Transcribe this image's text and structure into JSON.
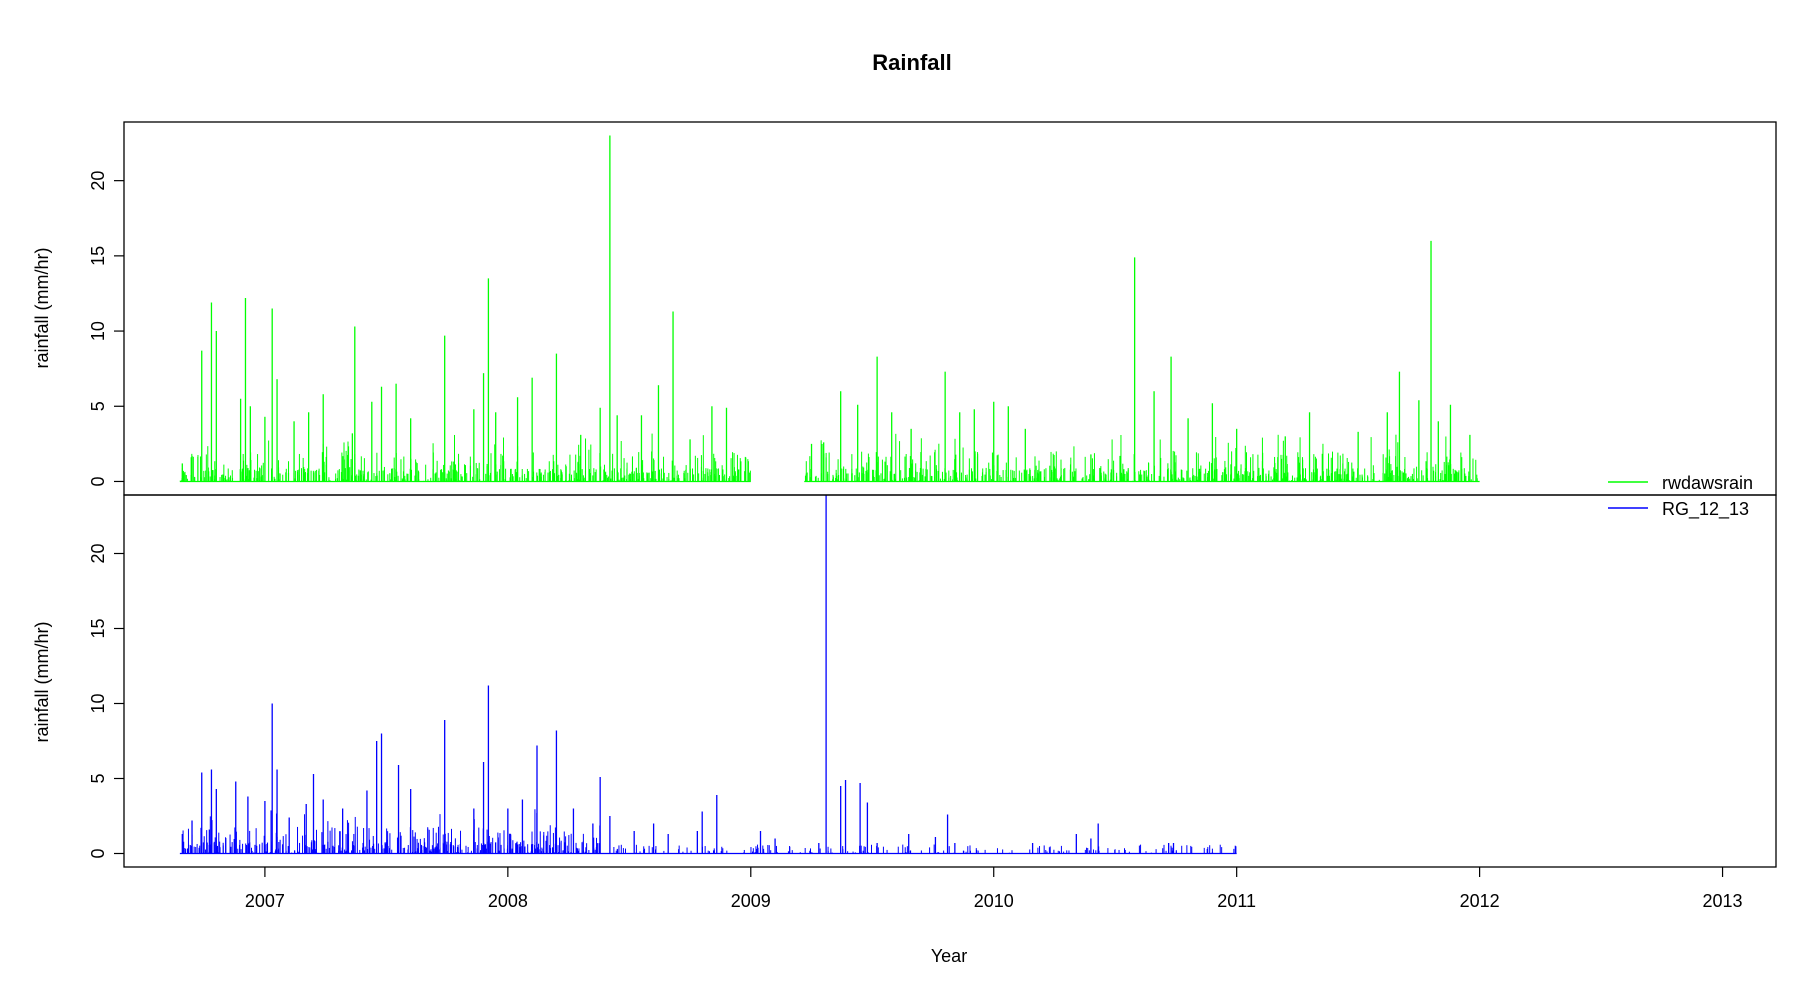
{
  "chart_data": {
    "type": "line",
    "title": "Rainfall",
    "xlabel": "Year",
    "x_ticks": [
      "2007",
      "2008",
      "2009",
      "2010",
      "2011",
      "2012",
      "2013"
    ],
    "xlim": [
      2006.42,
      2013.22
    ],
    "legend_position": "right, between panels",
    "grid": false,
    "panels": [
      {
        "ylabel": "rainfall (mm/hr)",
        "ylim": [
          -0.9,
          23.9
        ],
        "y_ticks": [
          0,
          5,
          10,
          15,
          20
        ],
        "series": [
          {
            "name": "rwdawsrain",
            "color": "#00ff00",
            "segments": [
              [
                2006.65,
                2009.0
              ],
              [
                2009.22,
                2012.0
              ]
            ],
            "peaks": [
              {
                "x": 2006.66,
                "y": 1.2
              },
              {
                "x": 2006.7,
                "y": 1.7
              },
              {
                "x": 2006.74,
                "y": 8.7
              },
              {
                "x": 2006.78,
                "y": 11.9
              },
              {
                "x": 2006.8,
                "y": 10.0
              },
              {
                "x": 2006.9,
                "y": 5.5
              },
              {
                "x": 2006.92,
                "y": 12.2
              },
              {
                "x": 2006.94,
                "y": 5.0
              },
              {
                "x": 2007.0,
                "y": 4.3
              },
              {
                "x": 2007.03,
                "y": 11.5
              },
              {
                "x": 2007.05,
                "y": 6.8
              },
              {
                "x": 2007.12,
                "y": 4.0
              },
              {
                "x": 2007.18,
                "y": 4.6
              },
              {
                "x": 2007.24,
                "y": 5.8
              },
              {
                "x": 2007.36,
                "y": 3.2
              },
              {
                "x": 2007.37,
                "y": 10.3
              },
              {
                "x": 2007.44,
                "y": 5.3
              },
              {
                "x": 2007.48,
                "y": 6.3
              },
              {
                "x": 2007.54,
                "y": 6.5
              },
              {
                "x": 2007.6,
                "y": 4.2
              },
              {
                "x": 2007.74,
                "y": 9.7
              },
              {
                "x": 2007.86,
                "y": 4.8
              },
              {
                "x": 2007.9,
                "y": 7.2
              },
              {
                "x": 2007.92,
                "y": 13.5
              },
              {
                "x": 2007.95,
                "y": 4.6
              },
              {
                "x": 2008.04,
                "y": 5.6
              },
              {
                "x": 2008.1,
                "y": 6.9
              },
              {
                "x": 2008.2,
                "y": 8.5
              },
              {
                "x": 2008.3,
                "y": 3.1
              },
              {
                "x": 2008.38,
                "y": 4.9
              },
              {
                "x": 2008.42,
                "y": 23.0
              },
              {
                "x": 2008.45,
                "y": 4.4
              },
              {
                "x": 2008.55,
                "y": 4.4
              },
              {
                "x": 2008.62,
                "y": 6.4
              },
              {
                "x": 2008.68,
                "y": 11.3
              },
              {
                "x": 2008.75,
                "y": 2.8
              },
              {
                "x": 2008.84,
                "y": 5.0
              },
              {
                "x": 2008.9,
                "y": 4.9
              },
              {
                "x": 2008.95,
                "y": 0.8
              },
              {
                "x": 2009.25,
                "y": 2.5
              },
              {
                "x": 2009.3,
                "y": 2.6
              },
              {
                "x": 2009.37,
                "y": 6.0
              },
              {
                "x": 2009.44,
                "y": 5.1
              },
              {
                "x": 2009.52,
                "y": 8.3
              },
              {
                "x": 2009.58,
                "y": 4.6
              },
              {
                "x": 2009.66,
                "y": 3.5
              },
              {
                "x": 2009.8,
                "y": 7.3
              },
              {
                "x": 2009.86,
                "y": 4.6
              },
              {
                "x": 2009.92,
                "y": 4.8
              },
              {
                "x": 2010.0,
                "y": 5.3
              },
              {
                "x": 2010.06,
                "y": 5.0
              },
              {
                "x": 2010.13,
                "y": 3.5
              },
              {
                "x": 2010.25,
                "y": 1.0
              },
              {
                "x": 2010.4,
                "y": 1.8
              },
              {
                "x": 2010.52,
                "y": 1.7
              },
              {
                "x": 2010.58,
                "y": 14.9
              },
              {
                "x": 2010.66,
                "y": 6.0
              },
              {
                "x": 2010.73,
                "y": 8.3
              },
              {
                "x": 2010.8,
                "y": 4.2
              },
              {
                "x": 2010.9,
                "y": 5.2
              },
              {
                "x": 2011.0,
                "y": 3.5
              },
              {
                "x": 2011.2,
                "y": 3.0
              },
              {
                "x": 2011.3,
                "y": 4.6
              },
              {
                "x": 2011.5,
                "y": 3.3
              },
              {
                "x": 2011.62,
                "y": 4.6
              },
              {
                "x": 2011.67,
                "y": 7.3
              },
              {
                "x": 2011.75,
                "y": 5.4
              },
              {
                "x": 2011.8,
                "y": 16.0
              },
              {
                "x": 2011.83,
                "y": 4.0
              },
              {
                "x": 2011.88,
                "y": 5.1
              },
              {
                "x": 2011.96,
                "y": 3.1
              }
            ]
          }
        ]
      },
      {
        "ylabel": "rainfall (mm/hr)",
        "ylim": [
          -0.9,
          23.9
        ],
        "y_ticks": [
          0,
          5,
          10,
          15,
          20
        ],
        "series": [
          {
            "name": "RG_12_13",
            "color": "#0000ff",
            "segments": [
              [
                2006.65,
                2011.0
              ]
            ],
            "peaks": [
              {
                "x": 2006.66,
                "y": 1.3
              },
              {
                "x": 2006.7,
                "y": 2.2
              },
              {
                "x": 2006.74,
                "y": 5.4
              },
              {
                "x": 2006.78,
                "y": 5.6
              },
              {
                "x": 2006.8,
                "y": 4.3
              },
              {
                "x": 2006.88,
                "y": 4.8
              },
              {
                "x": 2006.93,
                "y": 3.8
              },
              {
                "x": 2007.0,
                "y": 3.5
              },
              {
                "x": 2007.03,
                "y": 10.0
              },
              {
                "x": 2007.05,
                "y": 5.6
              },
              {
                "x": 2007.1,
                "y": 2.4
              },
              {
                "x": 2007.17,
                "y": 3.3
              },
              {
                "x": 2007.2,
                "y": 5.3
              },
              {
                "x": 2007.24,
                "y": 3.6
              },
              {
                "x": 2007.32,
                "y": 3.0
              },
              {
                "x": 2007.42,
                "y": 4.2
              },
              {
                "x": 2007.46,
                "y": 7.5
              },
              {
                "x": 2007.48,
                "y": 8.0
              },
              {
                "x": 2007.55,
                "y": 5.9
              },
              {
                "x": 2007.6,
                "y": 4.3
              },
              {
                "x": 2007.74,
                "y": 8.9
              },
              {
                "x": 2007.86,
                "y": 3.0
              },
              {
                "x": 2007.9,
                "y": 6.1
              },
              {
                "x": 2007.92,
                "y": 11.2
              },
              {
                "x": 2008.0,
                "y": 3.0
              },
              {
                "x": 2008.06,
                "y": 3.6
              },
              {
                "x": 2008.12,
                "y": 7.2
              },
              {
                "x": 2008.2,
                "y": 8.2
              },
              {
                "x": 2008.27,
                "y": 3.0
              },
              {
                "x": 2008.35,
                "y": 2.0
              },
              {
                "x": 2008.38,
                "y": 5.1
              },
              {
                "x": 2008.42,
                "y": 2.5
              },
              {
                "x": 2008.52,
                "y": 1.5
              },
              {
                "x": 2008.6,
                "y": 2.0
              },
              {
                "x": 2008.66,
                "y": 1.3
              },
              {
                "x": 2008.78,
                "y": 1.5
              },
              {
                "x": 2008.8,
                "y": 2.8
              },
              {
                "x": 2008.86,
                "y": 3.9
              },
              {
                "x": 2009.04,
                "y": 1.5
              },
              {
                "x": 2009.1,
                "y": 1.0
              },
              {
                "x": 2009.28,
                "y": 0.7
              },
              {
                "x": 2009.31,
                "y": 23.9
              },
              {
                "x": 2009.37,
                "y": 4.5
              },
              {
                "x": 2009.39,
                "y": 4.9
              },
              {
                "x": 2009.45,
                "y": 4.7
              },
              {
                "x": 2009.48,
                "y": 3.4
              },
              {
                "x": 2009.52,
                "y": 0.7
              },
              {
                "x": 2009.65,
                "y": 1.3
              },
              {
                "x": 2009.76,
                "y": 1.1
              },
              {
                "x": 2009.81,
                "y": 2.6
              },
              {
                "x": 2009.84,
                "y": 0.7
              },
              {
                "x": 2010.16,
                "y": 0.7
              },
              {
                "x": 2010.34,
                "y": 1.3
              },
              {
                "x": 2010.4,
                "y": 1.0
              },
              {
                "x": 2010.43,
                "y": 2.0
              },
              {
                "x": 2010.72,
                "y": 0.7
              },
              {
                "x": 2010.74,
                "y": 0.7
              }
            ]
          }
        ]
      }
    ]
  }
}
